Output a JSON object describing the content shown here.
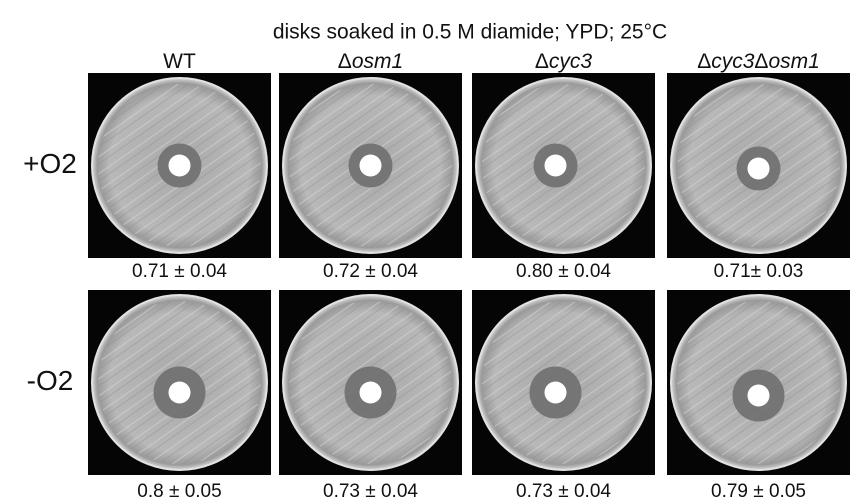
{
  "title": "disks soaked in 0.5 M diamide; YPD; 25°C",
  "columns": [
    {
      "label": [
        "WT"
      ]
    },
    {
      "label": [
        "Δ",
        "osm1"
      ]
    },
    {
      "label": [
        "Δ",
        "cyc3"
      ]
    },
    {
      "label": [
        "Δ",
        "cyc3",
        "Δ",
        "osm1"
      ]
    }
  ],
  "rows": [
    {
      "label": "+O2",
      "values": [
        "0.71 ± 0.04",
        "0.72 ± 0.04",
        "0.80 ± 0.04",
        "0.71± 0.03"
      ]
    },
    {
      "label": "-O2",
      "values": [
        "0.8 ± 0.05",
        "0.73 ± 0.04",
        "0.73 ± 0.04",
        "0.79 ± 0.05"
      ]
    }
  ]
}
